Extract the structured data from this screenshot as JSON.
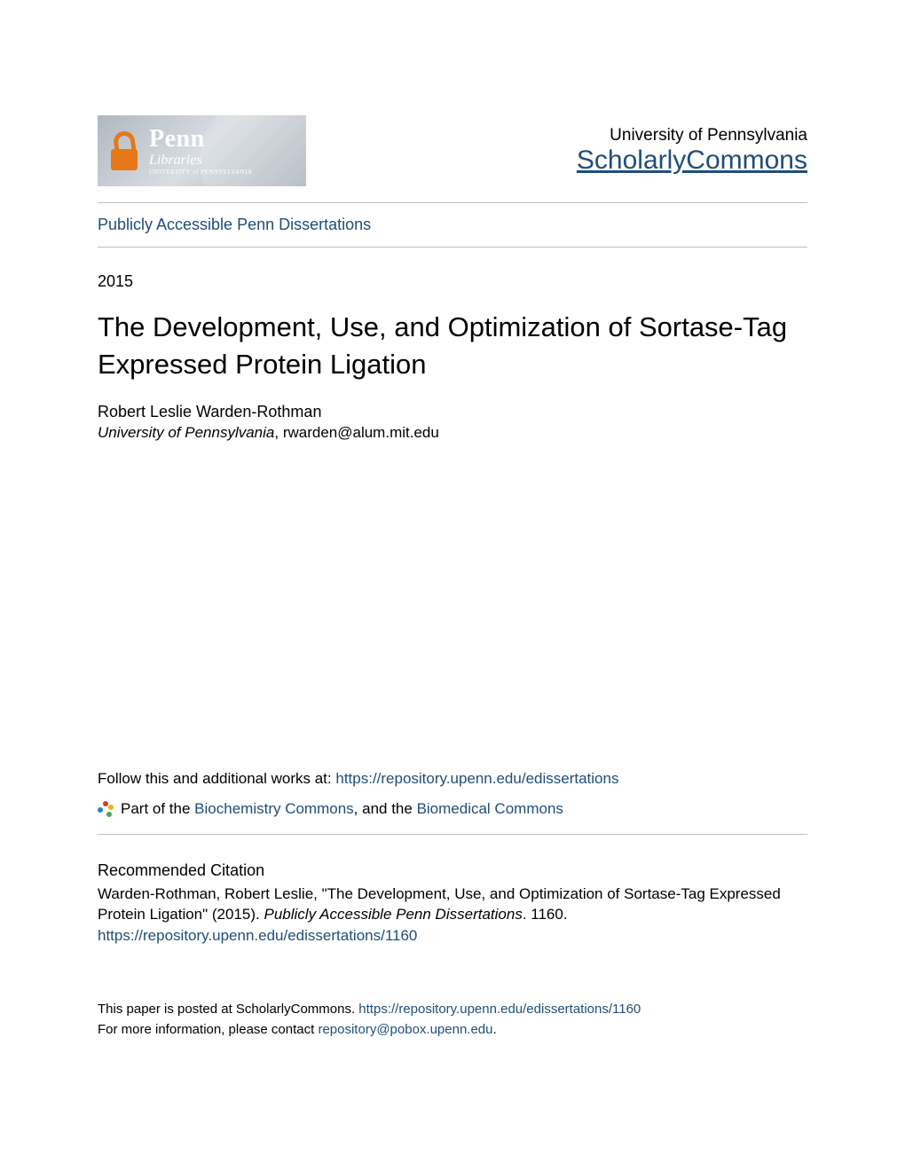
{
  "colors": {
    "link": "#1f4e79",
    "text": "#000000",
    "divider": "#bfbfbf",
    "background": "#ffffff",
    "lock_orange": "#e67817"
  },
  "header": {
    "logo": {
      "line1": "Penn",
      "line2": "Libraries",
      "line3": "UNIVERSITY of PENNSYLVANIA"
    },
    "university": "University of Pennsylvania",
    "repository": "ScholarlyCommons"
  },
  "collection_link": "Publicly Accessible Penn Dissertations",
  "year": "2015",
  "title": "The Development, Use, and Optimization of Sortase-Tag Expressed Protein Ligation",
  "author": "Robert Leslie Warden-Rothman",
  "affiliation_inst": "University of Pennsylvania",
  "affiliation_email": ", rwarden@alum.mit.edu",
  "follow": {
    "prefix": "Follow this and additional works at: ",
    "url": "https://repository.upenn.edu/edissertations"
  },
  "partof": {
    "prefix": "Part of the ",
    "link1": "Biochemistry Commons",
    "mid": ", and the ",
    "link2": "Biomedical Commons"
  },
  "citation": {
    "heading": "Recommended Citation",
    "text_prefix": "Warden-Rothman, Robert Leslie, \"The Development, Use, and Optimization of Sortase-Tag Expressed Protein Ligation\" (2015). ",
    "series": "Publicly Accessible Penn Dissertations",
    "text_suffix": ". 1160.",
    "url": "https://repository.upenn.edu/edissertations/1160"
  },
  "footer": {
    "line1_prefix": "This paper is posted at ScholarlyCommons. ",
    "line1_url": "https://repository.upenn.edu/edissertations/1160",
    "line2_prefix": "For more information, please contact ",
    "line2_email": "repository@pobox.upenn.edu",
    "line2_suffix": "."
  }
}
